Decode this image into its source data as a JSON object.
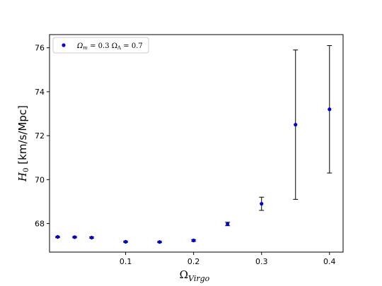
{
  "chart_data": {
    "type": "scatter",
    "xlabel_main": "Ω",
    "xlabel_sub": "Virgo",
    "ylabel_main": "H",
    "ylabel_sub": "0",
    "ylabel_rest": " [km/s/Mpc]",
    "xlim": [
      -0.012,
      0.42
    ],
    "ylim": [
      66.7,
      76.6
    ],
    "xticks": [
      0.1,
      0.2,
      0.3,
      0.4
    ],
    "xtick_labels": [
      "0.1",
      "0.2",
      "0.3",
      "0.4"
    ],
    "yticks": [
      68,
      70,
      72,
      74,
      76
    ],
    "ytick_labels": [
      "68",
      "70",
      "72",
      "74",
      "76"
    ],
    "grid": false,
    "legend_position": "top-left",
    "series": [
      {
        "name": "Ω_m = 0.3 Ω_Λ = 0.7",
        "legend_parts": [
          "Ω",
          "m",
          " = 0.3 Ω",
          "Λ",
          " = 0.7"
        ],
        "color": "#0000cc",
        "errorbar_color": "#000000",
        "points": [
          {
            "x": 0.0,
            "y": 67.39,
            "yerr": 0.03
          },
          {
            "x": 0.025,
            "y": 67.38,
            "yerr": 0.03
          },
          {
            "x": 0.05,
            "y": 67.36,
            "yerr": 0.03
          },
          {
            "x": 0.1,
            "y": 67.17,
            "yerr": 0.03
          },
          {
            "x": 0.15,
            "y": 67.16,
            "yerr": 0.03
          },
          {
            "x": 0.2,
            "y": 67.23,
            "yerr": 0.04
          },
          {
            "x": 0.25,
            "y": 67.98,
            "yerr": 0.08
          },
          {
            "x": 0.3,
            "y": 68.9,
            "yerr": 0.3
          },
          {
            "x": 0.35,
            "y": 72.5,
            "yerr": 3.4
          },
          {
            "x": 0.4,
            "y": 73.2,
            "yerr": 2.9
          }
        ]
      }
    ]
  }
}
